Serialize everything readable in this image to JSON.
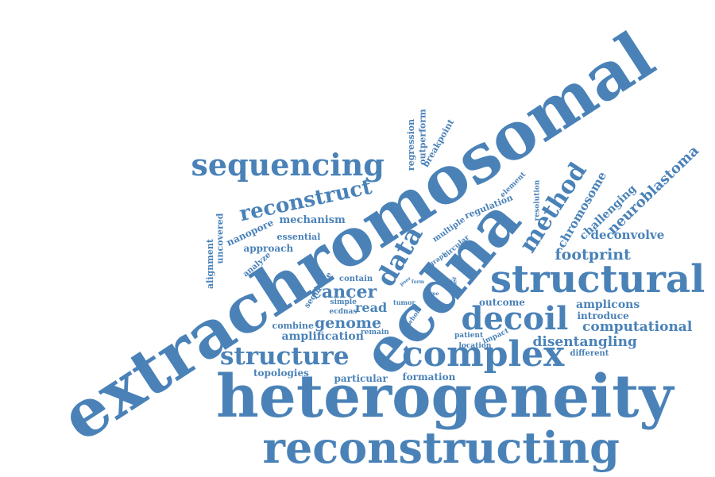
{
  "cloud": {
    "color": "#4a82b8",
    "words": [
      "extrachromosomal",
      "ecdna",
      "heterogeneity",
      "reconstructing",
      "structural",
      "complex",
      "decoil",
      "sequencing",
      "structure",
      "data",
      "method",
      "reconstruct",
      "footprint",
      "cancer",
      "genome",
      "disentangling",
      "computational",
      "neuroblastoma",
      "chromosome",
      "challenging",
      "deconvolve",
      "amplicons",
      "introduce",
      "outcome",
      "read",
      "amplification",
      "combine",
      "topologies",
      "particular",
      "formation",
      "different",
      "nanopore",
      "mechanism",
      "essential",
      "approach",
      "alignment",
      "uncovered",
      "analyze",
      "regression",
      "outperform",
      "breakpoint",
      "regulation",
      "multiple",
      "element",
      "resolution",
      "circular",
      "graph",
      "contain",
      "sequence",
      "simple",
      "ecdnas",
      "remain",
      "tumor",
      "whole",
      "patient",
      "location",
      "impact",
      "poor",
      "form",
      "type",
      "rich",
      "line"
    ]
  }
}
